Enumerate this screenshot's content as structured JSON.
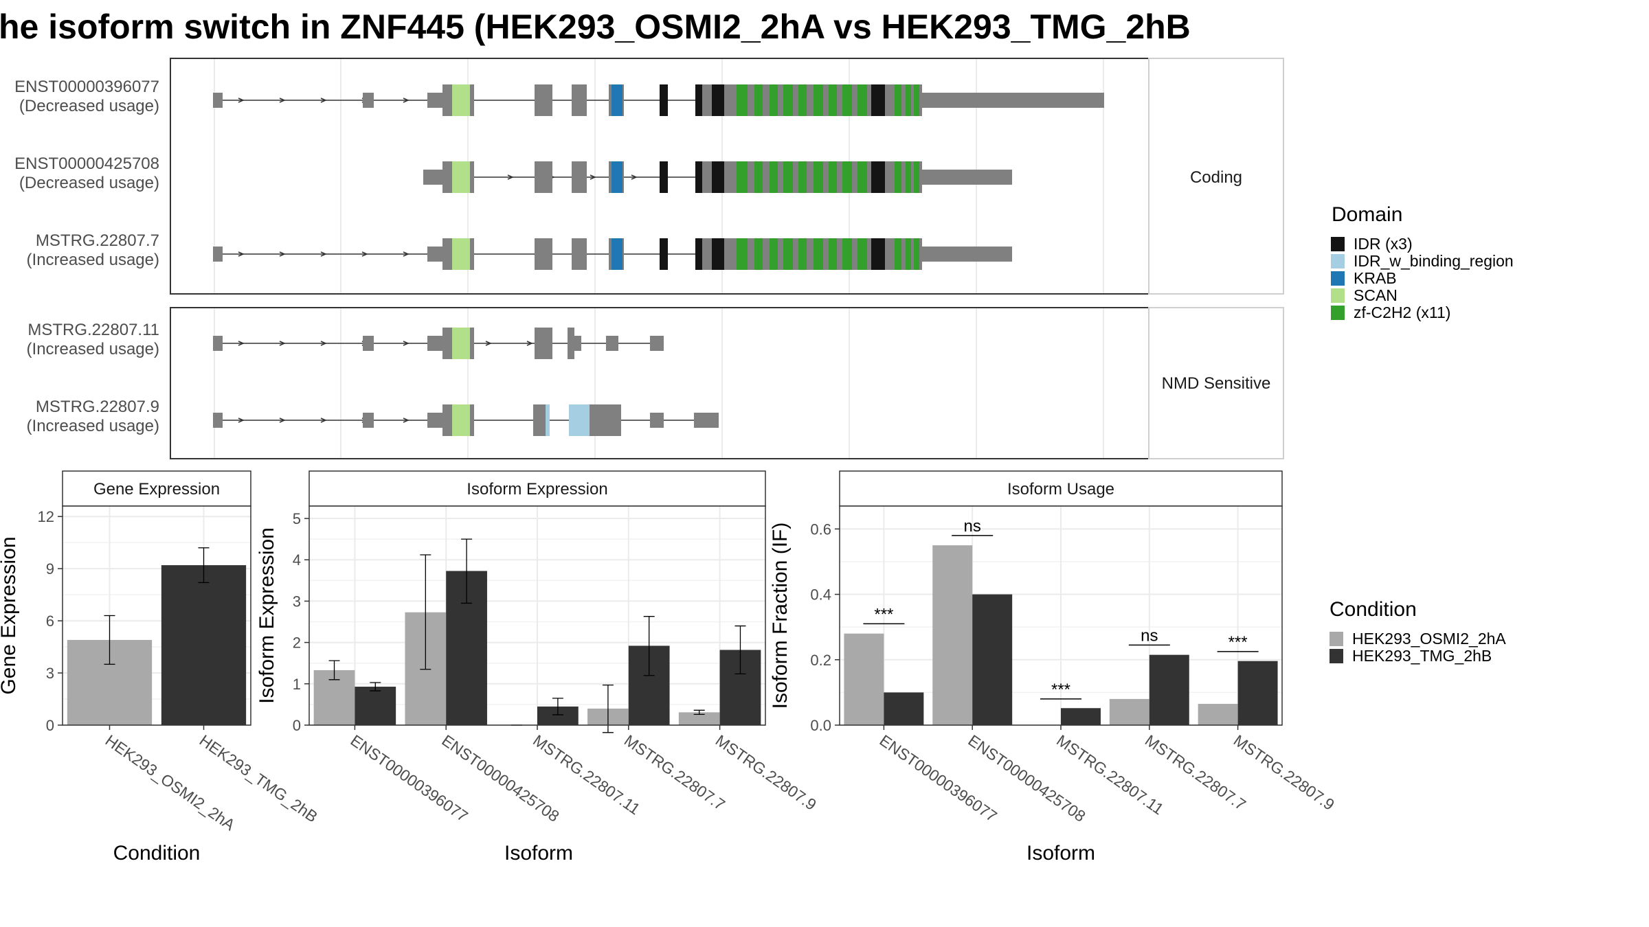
{
  "title": "he isoform switch in ZNF445 (HEK293_OSMI2_2hA vs HEK293_TMG_2hB",
  "colors": {
    "exon": "#808080",
    "IDR": "#141414",
    "IDR_w_binding_region": "#a6cee3",
    "KRAB": "#1f78b4",
    "SCAN": "#b2df8a",
    "zf-C2H2": "#33a02c",
    "cond_a": "#a9a9a9",
    "cond_b": "#333333"
  },
  "structure": {
    "panels": [
      {
        "strip": "Coding",
        "isoforms": [
          {
            "name": "ENST00000396077",
            "usage": "(Decreased usage)"
          },
          {
            "name": "ENST00000425708",
            "usage": "(Decreased usage)"
          },
          {
            "name": "MSTRG.22807.7",
            "usage": "(Increased usage)"
          }
        ]
      },
      {
        "strip": "NMD Sensitive",
        "isoforms": [
          {
            "name": "MSTRG.22807.11",
            "usage": "(Increased usage)"
          },
          {
            "name": "MSTRG.22807.9",
            "usage": "(Increased usage)"
          }
        ]
      }
    ]
  },
  "legend_domain": {
    "title": "Domain",
    "items": [
      {
        "label": "IDR (x3)",
        "color_key": "IDR"
      },
      {
        "label": "IDR_w_binding_region",
        "color_key": "IDR_w_binding_region"
      },
      {
        "label": "KRAB",
        "color_key": "KRAB"
      },
      {
        "label": "SCAN",
        "color_key": "SCAN"
      },
      {
        "label": "zf-C2H2 (x11)",
        "color_key": "zf-C2H2"
      }
    ]
  },
  "legend_condition": {
    "title": "Condition",
    "items": [
      {
        "label": "HEK293_OSMI2_2hA",
        "color_key": "cond_a"
      },
      {
        "label": "HEK293_TMG_2hB",
        "color_key": "cond_b"
      }
    ]
  },
  "chart_data": [
    {
      "type": "bar",
      "strip": "Gene Expression",
      "xlabel": "Condition",
      "ylabel": "Gene Expression",
      "ylim": [
        0,
        12.6
      ],
      "yticks": [
        0,
        3,
        6,
        9,
        12
      ],
      "categories": [
        "HEK293_OSMI2_2hA",
        "HEK293_TMG_2hB"
      ],
      "values": [
        4.9,
        9.2
      ],
      "errors": [
        [
          3.5,
          6.3
        ],
        [
          8.2,
          10.2
        ]
      ]
    },
    {
      "type": "bar",
      "strip": "Isoform Expression",
      "xlabel": "Isoform",
      "ylabel": "Isoform Expression",
      "ylim": [
        0,
        5.3
      ],
      "yticks": [
        0,
        1,
        2,
        3,
        4,
        5
      ],
      "categories": [
        "ENST00000396077",
        "ENST00000425708",
        "MSTRG.22807.11",
        "MSTRG.22807.7",
        "MSTRG.22807.9"
      ],
      "series": [
        {
          "name": "HEK293_OSMI2_2hA",
          "values": [
            1.33,
            2.73,
            0.0,
            0.4,
            0.31
          ],
          "errors": [
            [
              1.1,
              1.56
            ],
            [
              1.35,
              4.12
            ],
            [
              0.0,
              0.0
            ],
            [
              -0.18,
              0.97
            ],
            [
              0.26,
              0.36
            ]
          ]
        },
        {
          "name": "HEK293_TMG_2hB",
          "values": [
            0.93,
            3.73,
            0.45,
            1.92,
            1.82
          ],
          "errors": [
            [
              0.83,
              1.03
            ],
            [
              2.95,
              4.5
            ],
            [
              0.25,
              0.65
            ],
            [
              1.2,
              2.63
            ],
            [
              1.24,
              2.4
            ]
          ]
        }
      ]
    },
    {
      "type": "bar",
      "strip": "Isoform Usage",
      "xlabel": "Isoform",
      "ylabel": "Isoform Fraction (IF)",
      "ylim": [
        0,
        0.67
      ],
      "yticks": [
        0.0,
        0.2,
        0.4,
        0.6
      ],
      "ytick_labels": [
        "0.0",
        "0.2",
        "0.4",
        "0.6"
      ],
      "categories": [
        "ENST00000396077",
        "ENST00000425708",
        "MSTRG.22807.11",
        "MSTRG.22807.7",
        "MSTRG.22807.9"
      ],
      "series": [
        {
          "name": "HEK293_OSMI2_2hA",
          "values": [
            0.28,
            0.55,
            0.0,
            0.08,
            0.065
          ]
        },
        {
          "name": "HEK293_TMG_2hB",
          "values": [
            0.1,
            0.4,
            0.052,
            0.215,
            0.196
          ]
        }
      ],
      "significance": [
        {
          "label": "***",
          "y": 0.31
        },
        {
          "label": "ns",
          "y": 0.58
        },
        {
          "label": "***",
          "y": 0.08
        },
        {
          "label": "ns",
          "y": 0.245
        },
        {
          "label": "***",
          "y": 0.225
        }
      ]
    }
  ]
}
